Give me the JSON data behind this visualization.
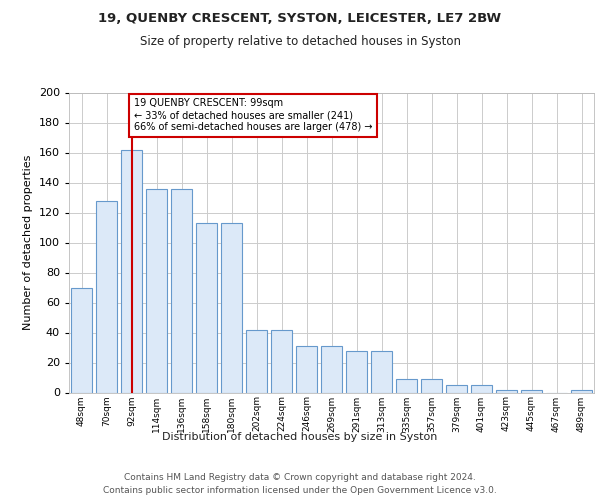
{
  "title1": "19, QUENBY CRESCENT, SYSTON, LEICESTER, LE7 2BW",
  "title2": "Size of property relative to detached houses in Syston",
  "xlabel": "Distribution of detached houses by size in Syston",
  "ylabel": "Number of detached properties",
  "bar_labels": [
    "48sqm",
    "70sqm",
    "92sqm",
    "114sqm",
    "136sqm",
    "158sqm",
    "180sqm",
    "202sqm",
    "224sqm",
    "246sqm",
    "269sqm",
    "291sqm",
    "313sqm",
    "335sqm",
    "357sqm",
    "379sqm",
    "401sqm",
    "423sqm",
    "445sqm",
    "467sqm",
    "489sqm"
  ],
  "bar_values": [
    70,
    128,
    162,
    136,
    136,
    113,
    113,
    42,
    42,
    31,
    31,
    28,
    28,
    9,
    9,
    5,
    5,
    2,
    2,
    0,
    2
  ],
  "bar_color": "#dce9f8",
  "bar_edge_color": "#6699cc",
  "vline_x": 2,
  "vline_color": "#cc0000",
  "annotation_text": "19 QUENBY CRESCENT: 99sqm\n← 33% of detached houses are smaller (241)\n66% of semi-detached houses are larger (478) →",
  "annotation_box_color": "#ffffff",
  "annotation_box_edge": "#cc0000",
  "ylim": [
    0,
    200
  ],
  "yticks": [
    0,
    20,
    40,
    60,
    80,
    100,
    120,
    140,
    160,
    180,
    200
  ],
  "footer1": "Contains HM Land Registry data © Crown copyright and database right 2024.",
  "footer2": "Contains public sector information licensed under the Open Government Licence v3.0.",
  "bg_color": "#ffffff",
  "grid_color": "#cccccc"
}
